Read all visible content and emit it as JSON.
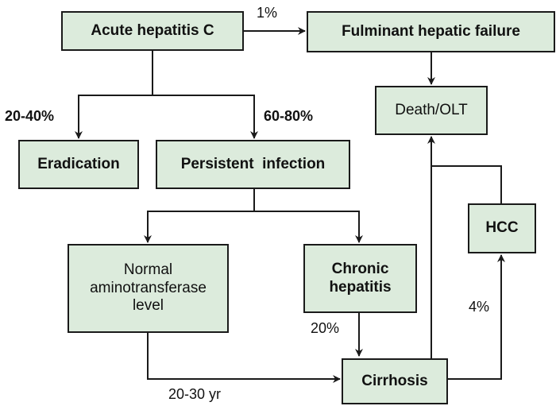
{
  "nodes": {
    "acute": "Acute hepatitis C",
    "fulminant": "Fulminant hepatic failure",
    "death": "Death/OLT",
    "eradication": "Eradication",
    "persistent": "Persistent  infection",
    "normal_line1": "Normal",
    "normal_line2": "aminotransferase",
    "normal_line3": "level",
    "chronic_line1": "Chronic",
    "chronic_line2": "hepatitis",
    "hcc": "HCC",
    "cirrhosis": "Cirrhosis"
  },
  "edges": {
    "acute_to_fulminant": "1%",
    "acute_to_eradication": "20-40%",
    "acute_to_persistent": "60-80%",
    "chronic_to_cirrhosis": "20%",
    "cirrhosis_to_hcc": "4%",
    "normal_to_cirrhosis": "20-30 yr"
  },
  "colors": {
    "box_fill": "#dcebdc",
    "stroke": "#1a1a1a"
  }
}
